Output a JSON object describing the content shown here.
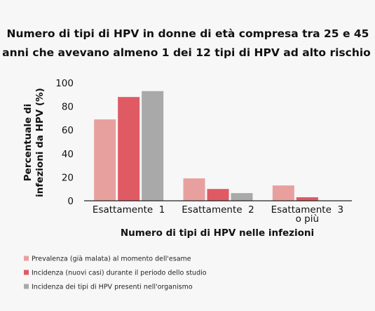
{
  "chart_data": {
    "type": "bar",
    "title": [
      "Numero di tipi di HPV in donne di età compresa tra 25 e 45",
      "anni che avevano almeno 1 dei 12 tipi di HPV ad alto rischio"
    ],
    "ylabel": [
      "Percentuale di",
      "infezioni da HPV (%)"
    ],
    "xlabel": "Numero di tipi di HPV nelle infezioni",
    "categories": [
      [
        "Esattamente  1"
      ],
      [
        "Esattamente  2"
      ],
      [
        "Esattamente  3",
        "o più"
      ]
    ],
    "ylim": [
      0,
      100
    ],
    "yticks": [
      0,
      20,
      40,
      60,
      80,
      100
    ],
    "grid": false,
    "legend_position": "bottom-left",
    "series": [
      {
        "name": "Prevalenza (già malata) al momento dell'esame",
        "color": "#e8a09e",
        "values": [
          69,
          19,
          13
        ]
      },
      {
        "name": "Incidenza (nuovi casi) durante il periodo dello studio",
        "color": "#e05a63",
        "values": [
          88,
          10,
          3
        ]
      },
      {
        "name": "Incidenza dei tipi di HPV presenti nell'organismo",
        "color": "#a9a9a9",
        "values": [
          93,
          6.5,
          0
        ]
      }
    ]
  }
}
